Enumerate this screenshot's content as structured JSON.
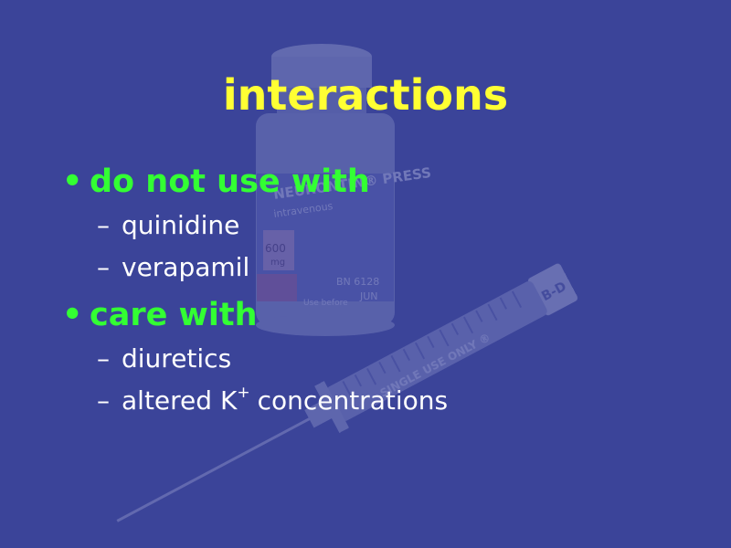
{
  "slide": {
    "title": "interactions",
    "bullet_symbol": "•",
    "dash_symbol": "–",
    "bullets": [
      {
        "label": "do not use with",
        "sub_items": [
          "quinidine",
          "verapamil"
        ]
      },
      {
        "label": "care with",
        "sub_items": [
          "diuretics"
        ],
        "special_item": {
          "prefix": "altered K",
          "superscript": "+",
          "suffix": "concentrations"
        }
      }
    ]
  },
  "background_image": {
    "vial_label_brand": "NEURONTIN® PRESS",
    "vial_label_sub": "intravenous",
    "vial_dose": "600",
    "vial_dose_unit": "mg",
    "vial_lot": "BN 6128",
    "vial_date": "JUN",
    "vial_use_before": "Use before",
    "syringe_text": "SINGLE USE ONLY ®",
    "syringe_brand": "B-D"
  },
  "colors": {
    "background": "#3b4499",
    "title": "#ffff33",
    "bullet": "#33ff33",
    "sub_item": "#ffffff"
  }
}
